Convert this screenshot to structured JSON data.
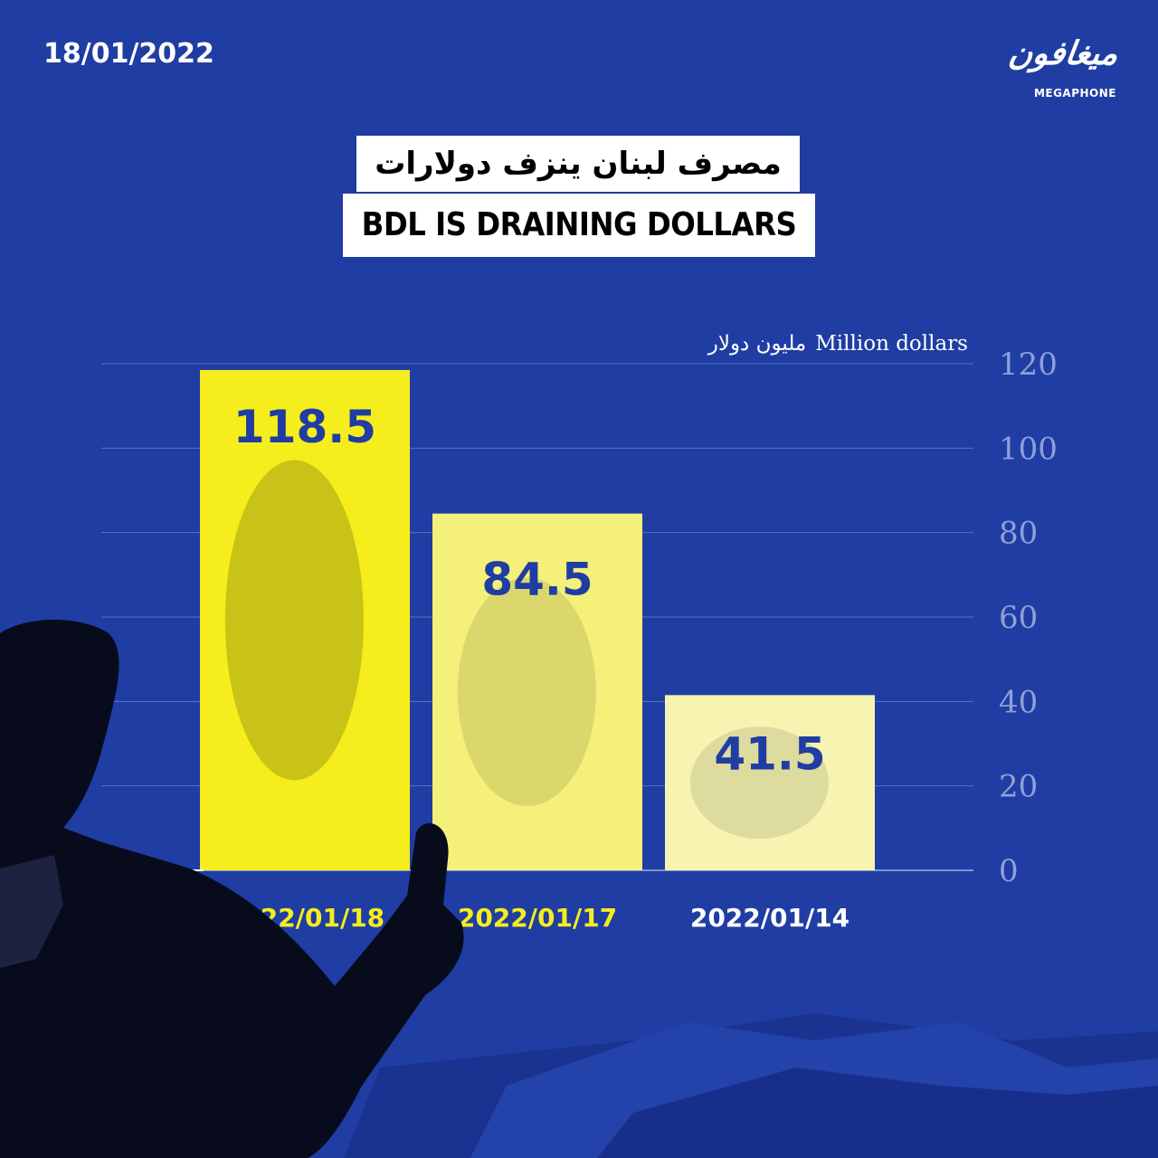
{
  "date": "18/01/2022",
  "logo": {
    "arabic": "ميغافون",
    "english": "MEGAPHONE"
  },
  "title_ar": "مصرف لبنان ينزف دولارات",
  "title_en": "BDL IS DRAINING DOLLARS",
  "unit_label": {
    "en": "Million dollars",
    "ar": "مليون دولار"
  },
  "colors": {
    "background": "#1f3da3",
    "bar1": "#f5ee1c",
    "bar2": "#f4f07a",
    "bar3": "#f6f4b0",
    "value_text": "#1f3da3",
    "date_label_highlight": "#f5ee1c",
    "date_label": "#ffffff",
    "grid": "#5a72bf",
    "tick": "#8fa0d8"
  },
  "chart_data": {
    "type": "bar",
    "categories": [
      "2022/01/18",
      "2022/01/17",
      "2022/01/14"
    ],
    "values": [
      118.5,
      84.5,
      41.5
    ],
    "value_labels": [
      "118.5",
      "84.5",
      "41.5"
    ],
    "title": "BDL IS DRAINING DOLLARS",
    "ylabel": "Million dollars",
    "ylim": [
      0,
      120
    ],
    "yticks": [
      0,
      20,
      40,
      60,
      80,
      100,
      120
    ],
    "ytick_position": "right",
    "grid": true
  }
}
